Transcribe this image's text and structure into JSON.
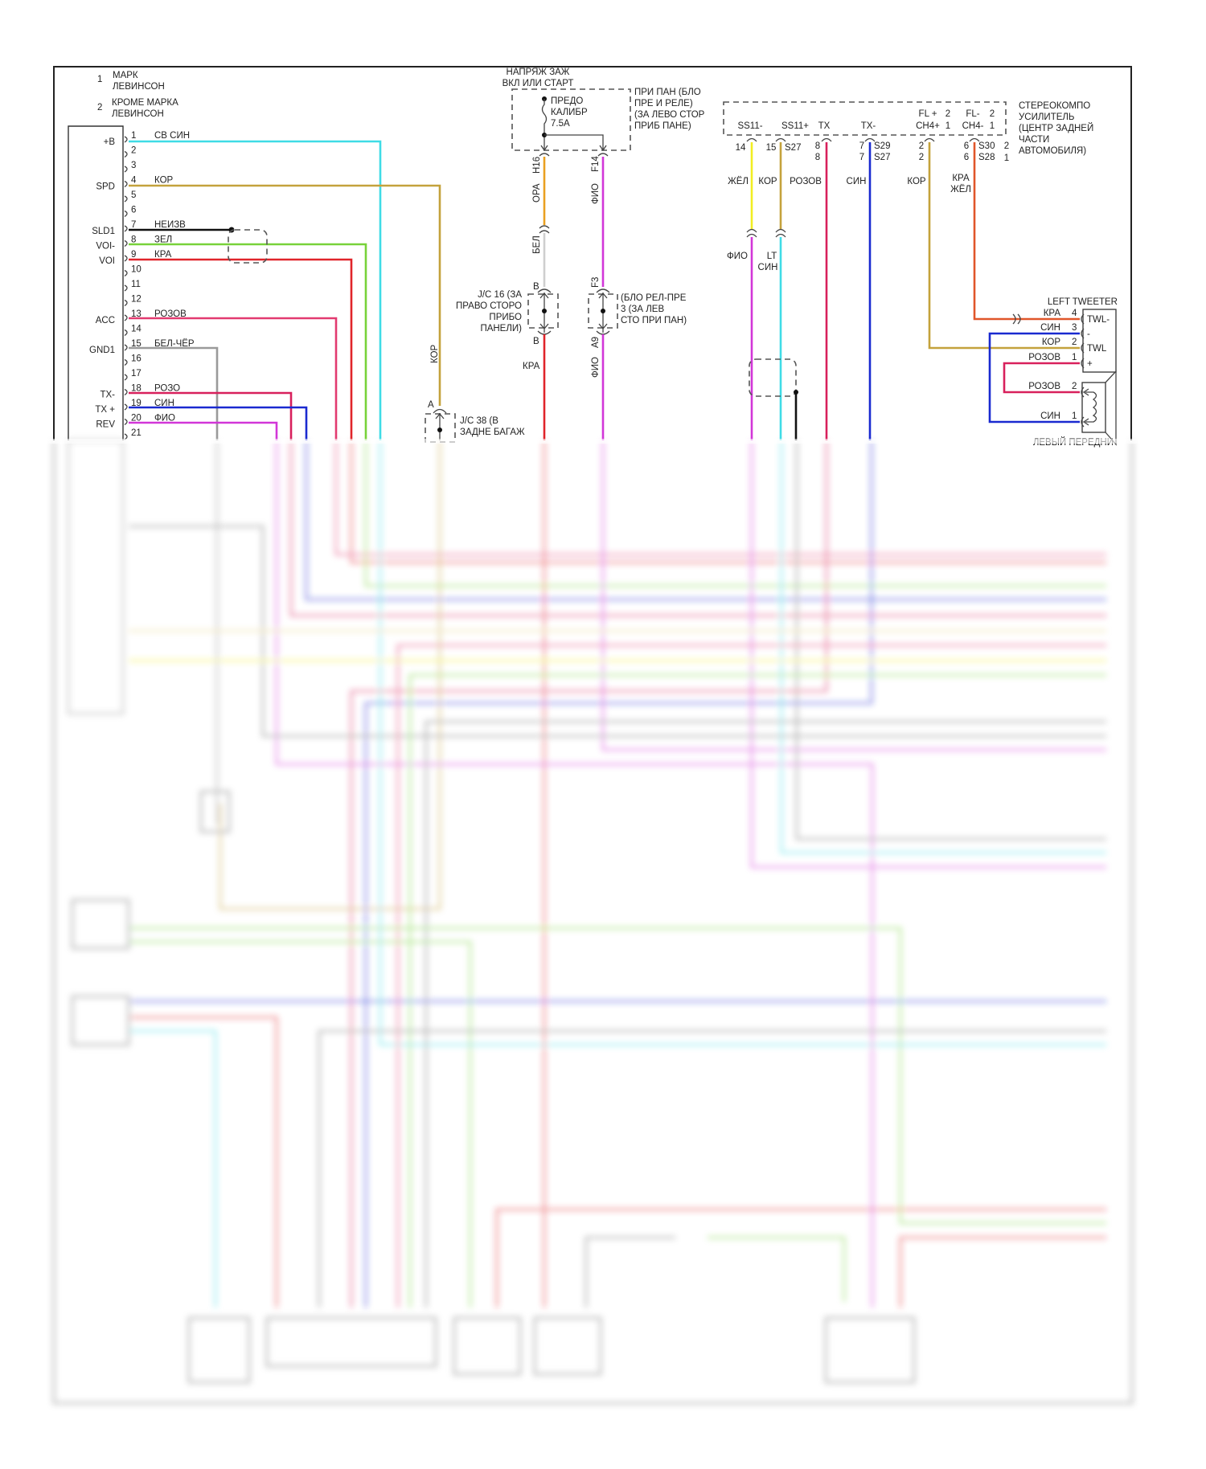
{
  "notes": {
    "n1": {
      "num": "1",
      "line1": "МАРК",
      "line2": "ЛЕВИНСОН"
    },
    "n2": {
      "num": "2",
      "line1": "КРОМЕ МАРКА",
      "line2": "ЛЕВИНСОН"
    }
  },
  "radio": {
    "pins": [
      {
        "num": "1",
        "label": "+B",
        "wire": "СВ СИН"
      },
      {
        "num": "2",
        "label": "",
        "wire": ""
      },
      {
        "num": "3",
        "label": "",
        "wire": ""
      },
      {
        "num": "4",
        "label": "SPD",
        "wire": "КОР"
      },
      {
        "num": "5",
        "label": "",
        "wire": ""
      },
      {
        "num": "6",
        "label": "",
        "wire": ""
      },
      {
        "num": "7",
        "label": "SLD1",
        "wire": "НЕИЗВ"
      },
      {
        "num": "8",
        "label": "VOI-",
        "wire": "ЗЕЛ"
      },
      {
        "num": "9",
        "label": "VOI",
        "wire": "КРА"
      },
      {
        "num": "10",
        "label": "",
        "wire": ""
      },
      {
        "num": "11",
        "label": "",
        "wire": ""
      },
      {
        "num": "12",
        "label": "",
        "wire": ""
      },
      {
        "num": "13",
        "label": "ACC",
        "wire": "РОЗОВ"
      },
      {
        "num": "14",
        "label": "",
        "wire": ""
      },
      {
        "num": "15",
        "label": "GND1",
        "wire": "БЕЛ-ЧЁР"
      },
      {
        "num": "16",
        "label": "",
        "wire": ""
      },
      {
        "num": "17",
        "label": "",
        "wire": ""
      },
      {
        "num": "18",
        "label": "TX-",
        "wire": "РОЗО"
      },
      {
        "num": "19",
        "label": "TX +",
        "wire": "СИН"
      },
      {
        "num": "20",
        "label": "REV",
        "wire": "ФИО"
      },
      {
        "num": "21",
        "label": "",
        "wire": ""
      }
    ]
  },
  "wire_colors": {
    "cyan": "#3fdce6",
    "tan": "#c4a23c",
    "black": "#111111",
    "green": "#78d23a",
    "red": "#e0242a",
    "pink": "#e23a70",
    "gray": "#9a9a9a",
    "crimson": "#d8205c",
    "blue": "#1a2ad0",
    "magenta": "#d236d8",
    "orange": "#eaa020",
    "yellow": "#f2ee22",
    "orange_red": "#e0562a",
    "white": "#cfcfcf"
  },
  "kop_label": "КОР",
  "jc38": {
    "pin": "A",
    "line1": "J/C 38 (В",
    "line2": "ЗАДНЕ БАГАЖ"
  },
  "ignition": {
    "line1": "НАПРЯЖ ЗАЖ",
    "line2": "ВКЛ ИЛИ СТАРТ"
  },
  "fuse": {
    "line1": "ПРЕДО",
    "line2": "КАЛИБР",
    "line3": "7.5A"
  },
  "fuse_box": {
    "line1": "ПРИ ПАН (БЛО",
    "line2": "ПРЕ И РЕЛЕ)",
    "line3": "(ЗА ЛЕВО СТОР",
    "line4": "ПРИБ ПАНЕ)"
  },
  "fuse_wires": {
    "h16": "H16",
    "ora": "ОРА",
    "f14": "F14",
    "fio1": "ФИО",
    "bel": "БЕЛ",
    "f3": "F3",
    "a9": "A9",
    "fio2": "ФИО",
    "kra": "КРА"
  },
  "jc16": {
    "pin_top": "B",
    "pin_bottom": "B",
    "line1": "J/C 16 (ЗА",
    "line2": "ПРАВО СТОРО",
    "line3": "ПРИБО",
    "line4": "ПАНЕЛИ)"
  },
  "relay_block": {
    "line1": "(БЛО РЕЛ-ПРЕ",
    "line2": "3 (ЗА ЛЕВ",
    "line3": "СТО ПРИ ПАН)"
  },
  "amp": {
    "line1": "СТЕРЕОКОМПО",
    "line2": "УСИЛИТЕЛЬ",
    "line3": "(ЦЕНТР ЗАДНЕЙ",
    "line4": "ЧАСТИ",
    "line5": "АВТОМОБИЛЯ)",
    "terms": {
      "ss11m": "SS11-",
      "ss11p": "SS11+",
      "tx": "TX",
      "txm": "TX-",
      "flp": "FL +",
      "flp_n": "2",
      "ch4p": "CH4+",
      "ch4p_n": "1",
      "flm": "FL-",
      "flm_n": "2",
      "ch4m": "CH4-",
      "ch4m_n": "1"
    },
    "pins": {
      "p14": "14",
      "p15": "15",
      "s27a": "S27",
      "p8a": "8",
      "p8b": "8",
      "p7a": "7",
      "p7b": "7",
      "s29": "S29",
      "s27b": "S27",
      "p2a": "2",
      "p2b": "2",
      "p6a": "6",
      "p6b": "6",
      "s30": "S30",
      "s28": "S28",
      "r2": "2",
      "r1": "1"
    },
    "wires": {
      "zhel": "ЖЁЛ",
      "kor1": "КОР",
      "rozov": "РОЗОВ",
      "sin": "СИН",
      "kor2": "КОР",
      "kra": "КРА",
      "zhel2": "ЖЁЛ",
      "fio": "ФИО",
      "lt": "LT",
      "sin2": "СИН"
    }
  },
  "tweeter": {
    "title": "LEFT TWEETER",
    "pins": [
      {
        "wire": "КРА",
        "num": "4",
        "term": "TWL-"
      },
      {
        "wire": "СИН",
        "num": "3",
        "term": "-"
      },
      {
        "wire": "КОР",
        "num": "2",
        "term": "TWL"
      },
      {
        "wire": "РОЗОВ",
        "num": "1",
        "term": "+"
      }
    ]
  },
  "speaker": {
    "pins": [
      {
        "wire": "РОЗОВ",
        "num": "2"
      },
      {
        "wire": "СИН",
        "num": "1"
      }
    ],
    "title": "ЛЕВЫЙ ПЕРЕДНИ"
  }
}
